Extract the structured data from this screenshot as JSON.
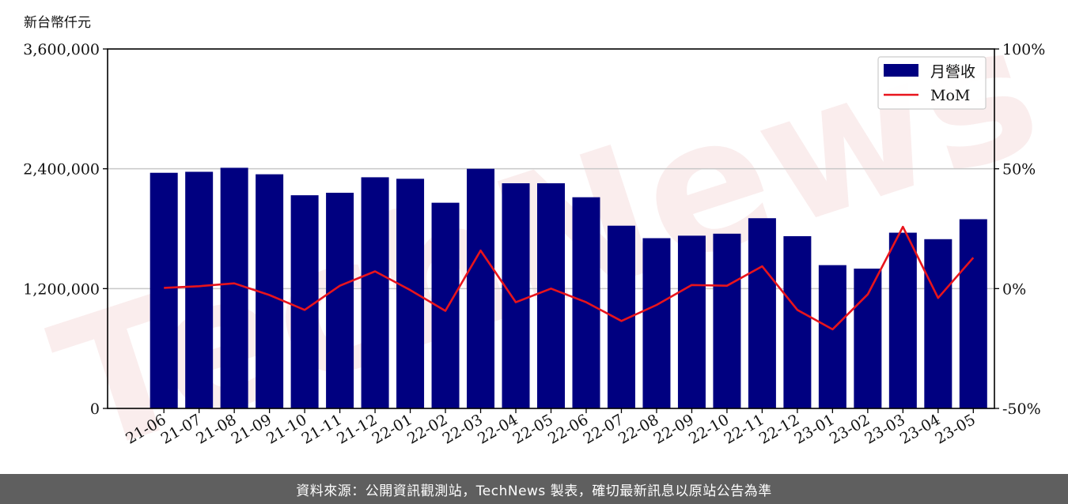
{
  "chart_data": {
    "type": "bar",
    "ylabel": "新台幣仟元",
    "categories": [
      "21-06",
      "21-07",
      "21-08",
      "21-09",
      "21-10",
      "21-11",
      "21-12",
      "22-01",
      "22-02",
      "22-03",
      "22-04",
      "22-05",
      "22-06",
      "22-07",
      "22-08",
      "22-09",
      "22-10",
      "22-11",
      "22-12",
      "23-01",
      "23-02",
      "23-03",
      "23-04",
      "23-05"
    ],
    "series": [
      {
        "name": "月營收",
        "kind": "bar",
        "axis": "left",
        "values": [
          2360000,
          2370000,
          2410000,
          2345000,
          2135000,
          2160000,
          2315000,
          2300000,
          2060000,
          2400000,
          2255000,
          2255000,
          2115000,
          1830000,
          1705000,
          1730000,
          1750000,
          1905000,
          1725000,
          1435000,
          1400000,
          1760000,
          1695000,
          1895000
        ]
      },
      {
        "name": "MoM",
        "kind": "line",
        "axis": "right",
        "values": [
          0.3,
          1.0,
          2.2,
          -2.7,
          -8.9,
          1.2,
          7.2,
          -0.6,
          -9.3,
          15.9,
          -5.7,
          0.0,
          -5.7,
          -13.5,
          -6.8,
          1.5,
          1.2,
          9.3,
          -8.9,
          -17.0,
          -2.4,
          25.8,
          -3.9,
          12.9
        ]
      }
    ],
    "yticks_left": [
      "0",
      "1,200,000",
      "2,400,000",
      "3,600,000"
    ],
    "yticks_right": [
      "-50%",
      "0%",
      "50%",
      "100%"
    ],
    "ylim_left": [
      0,
      3600000
    ],
    "ylim_right": [
      -50,
      100
    ],
    "grid": true,
    "legend_position": "top-right",
    "colors": {
      "bar": "#000080",
      "line": "#e8141c",
      "grid": "#c8c8c8"
    }
  },
  "footer": {
    "text": "資料來源：公開資訊觀測站，TechNews 製表，確切最新訊息以原站公告為準"
  },
  "watermark": {
    "text": "TechNews"
  }
}
